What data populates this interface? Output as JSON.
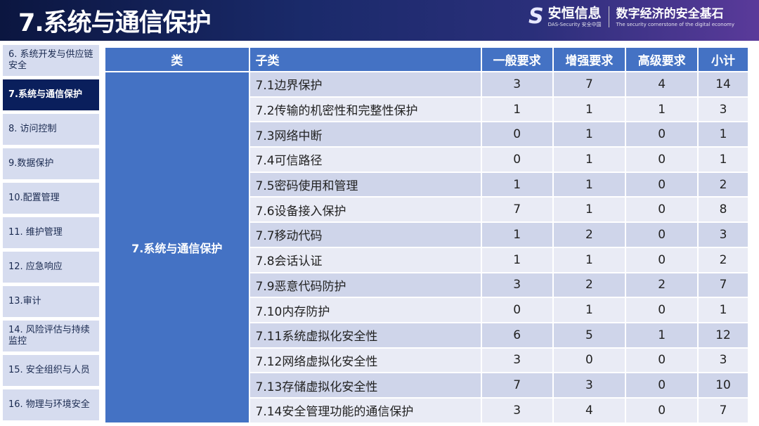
{
  "header": {
    "title": "7.系统与通信保护",
    "logo_name": "安恒信息",
    "logo_en": "DAS-Security 安全中国",
    "slogan": "数字经济的安全基石",
    "slogan_en": "The security cornerstone of the digital economy"
  },
  "sidebar": {
    "items": [
      {
        "label": "6. 系统开发与供应链安全",
        "active": false
      },
      {
        "label": "7.系统与通信保护",
        "active": true
      },
      {
        "label": "8. 访问控制",
        "active": false
      },
      {
        "label": "9.数据保护",
        "active": false
      },
      {
        "label": "10.配置管理",
        "active": false
      },
      {
        "label": "11. 维护管理",
        "active": false
      },
      {
        "label": "12. 应急响应",
        "active": false
      },
      {
        "label": "13.审计",
        "active": false
      },
      {
        "label": "14. 风险评估与持续监控",
        "active": false
      },
      {
        "label": "15. 安全组织与人员",
        "active": false
      },
      {
        "label": "16. 物理与环境安全",
        "active": false
      }
    ]
  },
  "table": {
    "headers": [
      "类",
      "子类",
      "一般要求",
      "增强要求",
      "高级要求",
      "小计"
    ],
    "category": "7.系统与通信保护",
    "rows": [
      [
        "7.1边界保护",
        "3",
        "7",
        "4",
        "14"
      ],
      [
        "7.2传输的机密性和完整性保护",
        "1",
        "1",
        "1",
        "3"
      ],
      [
        "7.3网络中断",
        "0",
        "1",
        "0",
        "1"
      ],
      [
        "7.4可信路径",
        "0",
        "1",
        "0",
        "1"
      ],
      [
        "7.5密码使用和管理",
        "1",
        "1",
        "0",
        "2"
      ],
      [
        "7.6设备接入保护",
        "7",
        "1",
        "0",
        "8"
      ],
      [
        "7.7移动代码",
        "1",
        "2",
        "0",
        "3"
      ],
      [
        "7.8会话认证",
        "1",
        "1",
        "0",
        "2"
      ],
      [
        "7.9恶意代码防护",
        "3",
        "2",
        "2",
        "7"
      ],
      [
        "7.10内存防护",
        "0",
        "1",
        "0",
        "1"
      ],
      [
        "7.11系统虚拟化安全性",
        "6",
        "5",
        "1",
        "12"
      ],
      [
        "7.12网络虚拟化安全性",
        "3",
        "0",
        "0",
        "3"
      ],
      [
        "7.13存储虚拟化安全性",
        "7",
        "3",
        "0",
        "10"
      ],
      [
        "7.14安全管理功能的通信保护",
        "3",
        "4",
        "0",
        "7"
      ]
    ]
  },
  "colors": {
    "header_blue": "#4472c4",
    "active_nav": "#0a1f5c",
    "row_dark": "#cfd5ea",
    "row_light": "#e9ebf5"
  }
}
